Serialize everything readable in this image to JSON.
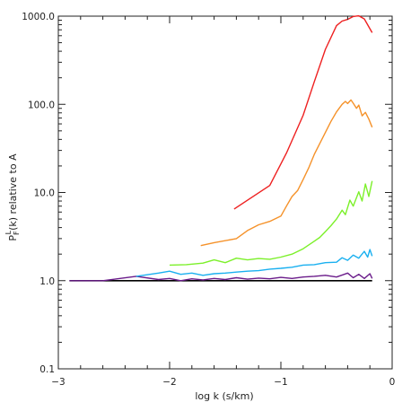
{
  "chart_data": {
    "type": "line",
    "title": "",
    "xlabel": "log k (s/km)",
    "ylabel_parts": {
      "main": "P",
      "sup": "L",
      "sub": "F",
      "tail": "(k) relative to A"
    },
    "xlim": [
      -3,
      0
    ],
    "ylim": [
      0.1,
      1000
    ],
    "yscale": "log",
    "x_ticks": [
      {
        "value": -3,
        "label": "−3"
      },
      {
        "value": -2,
        "label": "−2"
      },
      {
        "value": -1,
        "label": "−1"
      },
      {
        "value": 0,
        "label": "0"
      }
    ],
    "y_ticks": [
      {
        "value": 0.1,
        "label": "0.1"
      },
      {
        "value": 1,
        "label": "1.0"
      },
      {
        "value": 10,
        "label": "10.0"
      },
      {
        "value": 100,
        "label": "100.0"
      },
      {
        "value": 1000,
        "label": "1000.0"
      }
    ],
    "grid": false,
    "series": [
      {
        "color": "#000000",
        "x": [
          -2.9,
          -0.18
        ],
        "y": [
          1.0,
          1.0
        ]
      },
      {
        "color": "#6a1b8a",
        "x": [
          -2.9,
          -2.6,
          -2.3,
          -2.1,
          -2.0,
          -1.9,
          -1.8,
          -1.7,
          -1.6,
          -1.5,
          -1.4,
          -1.3,
          -1.2,
          -1.1,
          -1.0,
          -0.9,
          -0.8,
          -0.7,
          -0.6,
          -0.5,
          -0.4,
          -0.35,
          -0.3,
          -0.25,
          -0.2,
          -0.18
        ],
        "y": [
          1.0,
          1.0,
          1.12,
          1.03,
          1.06,
          1.0,
          1.05,
          1.02,
          1.06,
          1.03,
          1.08,
          1.04,
          1.07,
          1.05,
          1.09,
          1.06,
          1.1,
          1.12,
          1.15,
          1.1,
          1.22,
          1.08,
          1.18,
          1.06,
          1.2,
          1.06
        ]
      },
      {
        "color": "#1ab0f0",
        "x": [
          -2.3,
          -2.1,
          -2.0,
          -1.9,
          -1.8,
          -1.7,
          -1.6,
          -1.5,
          -1.4,
          -1.3,
          -1.2,
          -1.1,
          -1.0,
          -0.9,
          -0.8,
          -0.7,
          -0.6,
          -0.5,
          -0.45,
          -0.4,
          -0.35,
          -0.3,
          -0.25,
          -0.22,
          -0.2,
          -0.18
        ],
        "y": [
          1.12,
          1.22,
          1.28,
          1.18,
          1.22,
          1.15,
          1.2,
          1.22,
          1.25,
          1.28,
          1.3,
          1.35,
          1.38,
          1.42,
          1.5,
          1.52,
          1.6,
          1.62,
          1.82,
          1.7,
          1.95,
          1.8,
          2.15,
          1.85,
          2.25,
          1.9
        ]
      },
      {
        "color": "#7cf02a",
        "x": [
          -2.0,
          -1.85,
          -1.7,
          -1.6,
          -1.5,
          -1.4,
          -1.3,
          -1.2,
          -1.1,
          -1.0,
          -0.9,
          -0.8,
          -0.7,
          -0.65,
          -0.6,
          -0.55,
          -0.5,
          -0.45,
          -0.42,
          -0.38,
          -0.35,
          -0.3,
          -0.27,
          -0.24,
          -0.21,
          -0.18
        ],
        "y": [
          1.5,
          1.52,
          1.58,
          1.72,
          1.6,
          1.8,
          1.72,
          1.78,
          1.75,
          1.85,
          2.0,
          2.3,
          2.8,
          3.1,
          3.6,
          4.2,
          5.0,
          6.3,
          5.6,
          8.2,
          7.0,
          10.2,
          8.0,
          12.5,
          9.0,
          13.5
        ]
      },
      {
        "color": "#f5922a",
        "x": [
          -1.72,
          -1.6,
          -1.4,
          -1.3,
          -1.2,
          -1.1,
          -1.0,
          -0.95,
          -0.9,
          -0.85,
          -0.8,
          -0.75,
          -0.7,
          -0.65,
          -0.6,
          -0.55,
          -0.5,
          -0.45,
          -0.42,
          -0.4,
          -0.37,
          -0.35,
          -0.32,
          -0.3,
          -0.27,
          -0.24,
          -0.21,
          -0.18
        ],
        "y": [
          2.5,
          2.7,
          3.0,
          3.7,
          4.3,
          4.7,
          5.4,
          7.0,
          9.0,
          10.5,
          14.0,
          19.0,
          27.0,
          36.0,
          48.0,
          64.0,
          82.0,
          100.0,
          108.0,
          102.0,
          112.0,
          103.0,
          90.0,
          98.0,
          74.0,
          81.0,
          68.0,
          55.0
        ]
      },
      {
        "color": "#ee2020",
        "x": [
          -1.42,
          -1.1,
          -0.95,
          -0.8,
          -0.7,
          -0.6,
          -0.5,
          -0.45,
          -0.4,
          -0.35,
          -0.3,
          -0.25,
          -0.2,
          -0.18
        ],
        "y": [
          6.5,
          12.0,
          28.0,
          75.0,
          180.0,
          420.0,
          780.0,
          880.0,
          920.0,
          990.0,
          1010.0,
          930.0,
          720.0,
          650.0
        ]
      }
    ]
  }
}
